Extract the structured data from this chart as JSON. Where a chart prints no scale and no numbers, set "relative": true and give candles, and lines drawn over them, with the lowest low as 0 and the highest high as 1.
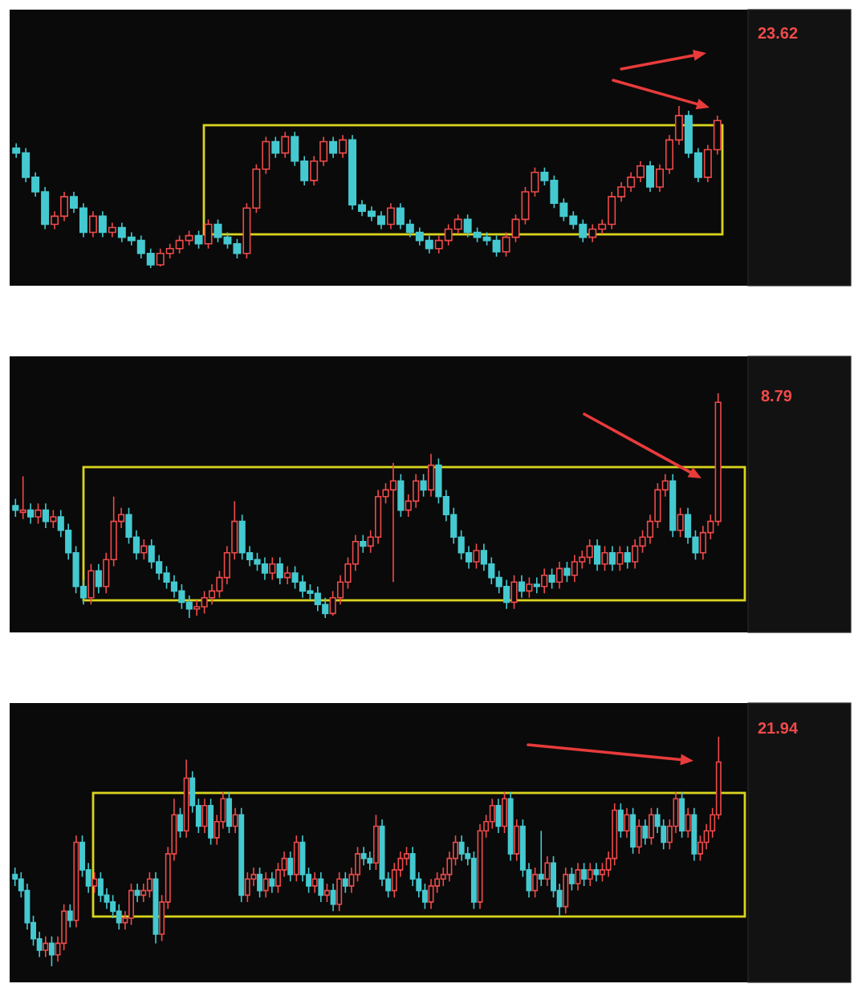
{
  "chart_data": [
    {
      "type": "candlestick",
      "relative": true,
      "categories": [
        null,
        null,
        null,
        null,
        null,
        null,
        null,
        null,
        null,
        null,
        null,
        null,
        null,
        null,
        null,
        null,
        null,
        null,
        null,
        null,
        null,
        null,
        null,
        null,
        null,
        null,
        null,
        null,
        null,
        null,
        null,
        null,
        null,
        null,
        null,
        null,
        null,
        null,
        null,
        null,
        null,
        null,
        null,
        null,
        null,
        null,
        null,
        null,
        null,
        null,
        null,
        null,
        null,
        null,
        null,
        null,
        null,
        null,
        null,
        null,
        null,
        null,
        null,
        null,
        null,
        null,
        null,
        null,
        null,
        null,
        null,
        null,
        null,
        null
      ],
      "ohlc": [
        [
          0.74,
          0.77,
          0.68,
          0.71
        ],
        [
          0.71,
          0.74,
          0.53,
          0.56
        ],
        [
          0.56,
          0.59,
          0.44,
          0.47
        ],
        [
          0.47,
          0.5,
          0.24,
          0.27
        ],
        [
          0.27,
          0.35,
          0.24,
          0.32
        ],
        [
          0.32,
          0.47,
          0.29,
          0.44
        ],
        [
          0.44,
          0.47,
          0.34,
          0.37
        ],
        [
          0.37,
          0.4,
          0.19,
          0.22
        ],
        [
          0.22,
          0.35,
          0.19,
          0.32
        ],
        [
          0.32,
          0.35,
          0.19,
          0.22
        ],
        [
          0.22,
          0.28,
          0.19,
          0.25
        ],
        [
          0.25,
          0.28,
          0.16,
          0.19
        ],
        [
          0.19,
          0.22,
          0.14,
          0.17
        ],
        [
          0.17,
          0.2,
          0.06,
          0.09
        ],
        [
          0.09,
          0.12,
          0,
          0.02
        ],
        [
          0.02,
          0.12,
          0.01,
          0.09
        ],
        [
          0.09,
          0.15,
          0.06,
          0.12
        ],
        [
          0.12,
          0.2,
          0.09,
          0.17
        ],
        [
          0.17,
          0.23,
          0.14,
          0.2
        ],
        [
          0.2,
          0.23,
          0.12,
          0.15
        ],
        [
          0.15,
          0.3,
          0.12,
          0.27
        ],
        [
          0.27,
          0.3,
          0.16,
          0.19
        ],
        [
          0.19,
          0.22,
          0.12,
          0.15
        ],
        [
          0.15,
          0.18,
          0.06,
          0.09
        ],
        [
          0.09,
          0.4,
          0.06,
          0.37
        ],
        [
          0.37,
          0.64,
          0.34,
          0.61
        ],
        [
          0.61,
          0.81,
          0.58,
          0.78
        ],
        [
          0.78,
          0.81,
          0.68,
          0.71
        ],
        [
          0.71,
          0.84,
          0.68,
          0.81
        ],
        [
          0.81,
          0.84,
          0.63,
          0.66
        ],
        [
          0.66,
          0.69,
          0.51,
          0.54
        ],
        [
          0.54,
          0.69,
          0.51,
          0.66
        ],
        [
          0.66,
          0.81,
          0.63,
          0.78
        ],
        [
          0.78,
          0.81,
          0.68,
          0.71
        ],
        [
          0.71,
          0.82,
          0.68,
          0.79
        ],
        [
          0.79,
          0.82,
          0.36,
          0.39
        ],
        [
          0.39,
          0.42,
          0.32,
          0.35
        ],
        [
          0.35,
          0.38,
          0.29,
          0.32
        ],
        [
          0.32,
          0.35,
          0.24,
          0.27
        ],
        [
          0.27,
          0.4,
          0.24,
          0.37
        ],
        [
          0.37,
          0.4,
          0.24,
          0.27
        ],
        [
          0.27,
          0.3,
          0.19,
          0.22
        ],
        [
          0.22,
          0.25,
          0.14,
          0.17
        ],
        [
          0.17,
          0.2,
          0.09,
          0.12
        ],
        [
          0.12,
          0.2,
          0.09,
          0.17
        ],
        [
          0.17,
          0.27,
          0.14,
          0.24
        ],
        [
          0.24,
          0.33,
          0.21,
          0.3
        ],
        [
          0.3,
          0.33,
          0.19,
          0.22
        ],
        [
          0.22,
          0.25,
          0.16,
          0.19
        ],
        [
          0.19,
          0.22,
          0.14,
          0.17
        ],
        [
          0.17,
          0.2,
          0.07,
          0.1
        ],
        [
          0.1,
          0.22,
          0.07,
          0.19
        ],
        [
          0.19,
          0.33,
          0.16,
          0.3
        ],
        [
          0.3,
          0.5,
          0.27,
          0.47
        ],
        [
          0.47,
          0.62,
          0.44,
          0.59
        ],
        [
          0.59,
          0.62,
          0.51,
          0.54
        ],
        [
          0.54,
          0.57,
          0.37,
          0.4
        ],
        [
          0.4,
          0.43,
          0.29,
          0.32
        ],
        [
          0.32,
          0.35,
          0.24,
          0.27
        ],
        [
          0.27,
          0.3,
          0.16,
          0.19
        ],
        [
          0.19,
          0.27,
          0.16,
          0.24
        ],
        [
          0.24,
          0.3,
          0.21,
          0.27
        ],
        [
          0.27,
          0.47,
          0.24,
          0.44
        ],
        [
          0.44,
          0.53,
          0.41,
          0.5
        ],
        [
          0.5,
          0.59,
          0.47,
          0.56
        ],
        [
          0.56,
          0.66,
          0.53,
          0.63
        ],
        [
          0.63,
          0.66,
          0.47,
          0.5
        ],
        [
          0.5,
          0.64,
          0.47,
          0.61
        ],
        [
          0.61,
          0.82,
          0.58,
          0.79
        ],
        [
          0.79,
          1,
          0.76,
          0.94
        ],
        [
          0.94,
          0.97,
          0.68,
          0.71
        ],
        [
          0.71,
          0.74,
          0.53,
          0.56
        ],
        [
          0.56,
          0.76,
          0.53,
          0.73
        ],
        [
          0.73,
          0.94,
          0.7,
          0.91
        ]
      ],
      "colors": [
        "#45c9d0",
        "#45c9d0",
        "#45c9d0",
        "#45c9d0",
        "#f04a4a",
        "#f04a4a",
        "#45c9d0",
        "#45c9d0",
        "#f04a4a",
        "#45c9d0",
        "#f04a4a",
        "#45c9d0",
        "#45c9d0",
        "#45c9d0",
        "#45c9d0",
        "#f04a4a",
        "#f04a4a",
        "#f04a4a",
        "#f04a4a",
        "#45c9d0",
        "#f04a4a",
        "#45c9d0",
        "#45c9d0",
        "#45c9d0",
        "#f04a4a",
        "#f04a4a",
        "#f04a4a",
        "#45c9d0",
        "#f04a4a",
        "#45c9d0",
        "#45c9d0",
        "#f04a4a",
        "#f04a4a",
        "#45c9d0",
        "#f04a4a",
        "#45c9d0",
        "#45c9d0",
        "#45c9d0",
        "#45c9d0",
        "#f04a4a",
        "#45c9d0",
        "#45c9d0",
        "#45c9d0",
        "#45c9d0",
        "#f04a4a",
        "#f04a4a",
        "#f04a4a",
        "#45c9d0",
        "#45c9d0",
        "#45c9d0",
        "#45c9d0",
        "#f04a4a",
        "#f04a4a",
        "#f04a4a",
        "#f04a4a",
        "#45c9d0",
        "#45c9d0",
        "#45c9d0",
        "#45c9d0",
        "#45c9d0",
        "#f04a4a",
        "#f04a4a",
        "#f04a4a",
        "#f04a4a",
        "#f04a4a",
        "#f04a4a",
        "#45c9d0",
        "#f04a4a",
        "#f04a4a",
        "#f04a4a",
        "#45c9d0",
        "#45c9d0",
        "#f04a4a",
        "#f04a4a"
      ],
      "annotations": [
        "23.62"
      ]
    },
    {
      "type": "candlestick",
      "relative": true,
      "categories": [
        null,
        null,
        null,
        null,
        null,
        null,
        null,
        null,
        null,
        null,
        null,
        null,
        null,
        null,
        null,
        null,
        null,
        null,
        null,
        null,
        null,
        null,
        null,
        null,
        null,
        null,
        null,
        null,
        null,
        null,
        null,
        null,
        null,
        null,
        null,
        null,
        null,
        null,
        null,
        null,
        null,
        null,
        null,
        null,
        null,
        null,
        null,
        null,
        null,
        null,
        null,
        null,
        null,
        null,
        null,
        null,
        null,
        null,
        null,
        null,
        null,
        null,
        null,
        null,
        null,
        null,
        null,
        null,
        null,
        null,
        null,
        null,
        null,
        null,
        null,
        null,
        null,
        null,
        null,
        null,
        null,
        null,
        null,
        null,
        null,
        null,
        null,
        null,
        null,
        null,
        null,
        null,
        null,
        null
      ],
      "ohlc": [
        [
          0.5,
          0.53,
          0.45,
          0.48
        ],
        [
          0.47,
          0.63,
          0.44,
          0.48
        ],
        [
          0.48,
          0.51,
          0.42,
          0.45
        ],
        [
          0.45,
          0.51,
          0.42,
          0.48
        ],
        [
          0.48,
          0.51,
          0.4,
          0.43
        ],
        [
          0.43,
          0.48,
          0.4,
          0.45
        ],
        [
          0.45,
          0.48,
          0.36,
          0.39
        ],
        [
          0.39,
          0.42,
          0.26,
          0.29
        ],
        [
          0.29,
          0.32,
          0.11,
          0.14
        ],
        [
          0.14,
          0.17,
          0.06,
          0.09
        ],
        [
          0.09,
          0.24,
          0.06,
          0.21
        ],
        [
          0.21,
          0.24,
          0.11,
          0.14
        ],
        [
          0.14,
          0.29,
          0.11,
          0.26
        ],
        [
          0.26,
          0.54,
          0.23,
          0.43
        ],
        [
          0.43,
          0.49,
          0.4,
          0.46
        ],
        [
          0.46,
          0.49,
          0.33,
          0.36
        ],
        [
          0.36,
          0.39,
          0.26,
          0.29
        ],
        [
          0.29,
          0.35,
          0.26,
          0.32
        ],
        [
          0.32,
          0.35,
          0.22,
          0.25
        ],
        [
          0.25,
          0.28,
          0.17,
          0.2
        ],
        [
          0.2,
          0.23,
          0.13,
          0.16
        ],
        [
          0.16,
          0.19,
          0.09,
          0.12
        ],
        [
          0.12,
          0.15,
          0.04,
          0.07
        ],
        [
          0.07,
          0.1,
          0,
          0.04
        ],
        [
          0.04,
          0.08,
          0.01,
          0.05
        ],
        [
          0.05,
          0.12,
          0.02,
          0.09
        ],
        [
          0.09,
          0.15,
          0.06,
          0.12
        ],
        [
          0.12,
          0.21,
          0.09,
          0.18
        ],
        [
          0.18,
          0.32,
          0.15,
          0.29
        ],
        [
          0.29,
          0.52,
          0.26,
          0.43
        ],
        [
          0.43,
          0.46,
          0.26,
          0.29
        ],
        [
          0.29,
          0.32,
          0.23,
          0.26
        ],
        [
          0.26,
          0.29,
          0.21,
          0.24
        ],
        [
          0.24,
          0.27,
          0.17,
          0.2
        ],
        [
          0.2,
          0.27,
          0.17,
          0.24
        ],
        [
          0.24,
          0.27,
          0.15,
          0.18
        ],
        [
          0.18,
          0.23,
          0.15,
          0.2
        ],
        [
          0.2,
          0.23,
          0.13,
          0.16
        ],
        [
          0.16,
          0.19,
          0.09,
          0.12
        ],
        [
          0.12,
          0.15,
          0.08,
          0.11
        ],
        [
          0.11,
          0.14,
          0.03,
          0.06
        ],
        [
          0.06,
          0.09,
          0,
          0.02
        ],
        [
          0.02,
          0.12,
          0.01,
          0.09
        ],
        [
          0.09,
          0.19,
          0.06,
          0.16
        ],
        [
          0.16,
          0.27,
          0.13,
          0.24
        ],
        [
          0.24,
          0.37,
          0.21,
          0.34
        ],
        [
          0.34,
          0.37,
          0.29,
          0.32
        ],
        [
          0.32,
          0.39,
          0.29,
          0.36
        ],
        [
          0.36,
          0.57,
          0.33,
          0.54
        ],
        [
          0.54,
          0.6,
          0.51,
          0.57
        ],
        [
          0.57,
          0.69,
          0.16,
          0.61
        ],
        [
          0.61,
          0.64,
          0.45,
          0.48
        ],
        [
          0.48,
          0.55,
          0.45,
          0.52
        ],
        [
          0.52,
          0.64,
          0.49,
          0.61
        ],
        [
          0.61,
          0.64,
          0.54,
          0.57
        ],
        [
          0.57,
          0.73,
          0.54,
          0.68
        ],
        [
          0.68,
          0.71,
          0.51,
          0.54
        ],
        [
          0.54,
          0.57,
          0.43,
          0.46
        ],
        [
          0.46,
          0.49,
          0.33,
          0.36
        ],
        [
          0.36,
          0.39,
          0.26,
          0.29
        ],
        [
          0.29,
          0.32,
          0.22,
          0.25
        ],
        [
          0.25,
          0.33,
          0.22,
          0.3
        ],
        [
          0.3,
          0.33,
          0.21,
          0.24
        ],
        [
          0.24,
          0.27,
          0.15,
          0.18
        ],
        [
          0.18,
          0.21,
          0.11,
          0.14
        ],
        [
          0.14,
          0.17,
          0.04,
          0.07
        ],
        [
          0.07,
          0.19,
          0.04,
          0.16
        ],
        [
          0.16,
          0.19,
          0.09,
          0.12
        ],
        [
          0.12,
          0.18,
          0.09,
          0.15
        ],
        [
          0.15,
          0.18,
          0.11,
          0.14
        ],
        [
          0.14,
          0.22,
          0.11,
          0.19
        ],
        [
          0.19,
          0.22,
          0.13,
          0.16
        ],
        [
          0.16,
          0.25,
          0.13,
          0.22
        ],
        [
          0.22,
          0.25,
          0.16,
          0.19
        ],
        [
          0.19,
          0.28,
          0.16,
          0.25
        ],
        [
          0.25,
          0.3,
          0.22,
          0.27
        ],
        [
          0.27,
          0.35,
          0.24,
          0.32
        ],
        [
          0.32,
          0.35,
          0.21,
          0.24
        ],
        [
          0.24,
          0.32,
          0.21,
          0.29
        ],
        [
          0.29,
          0.32,
          0.21,
          0.24
        ],
        [
          0.24,
          0.32,
          0.21,
          0.29
        ],
        [
          0.29,
          0.32,
          0.22,
          0.25
        ],
        [
          0.25,
          0.35,
          0.22,
          0.32
        ],
        [
          0.32,
          0.39,
          0.29,
          0.36
        ],
        [
          0.36,
          0.46,
          0.33,
          0.43
        ],
        [
          0.43,
          0.6,
          0.4,
          0.57
        ],
        [
          0.57,
          0.64,
          0.54,
          0.61
        ],
        [
          0.61,
          0.64,
          0.36,
          0.39
        ],
        [
          0.39,
          0.49,
          0.36,
          0.46
        ],
        [
          0.46,
          0.49,
          0.33,
          0.36
        ],
        [
          0.36,
          0.39,
          0.26,
          0.29
        ],
        [
          0.29,
          0.41,
          0.26,
          0.38
        ],
        [
          0.38,
          0.46,
          0.35,
          0.43
        ],
        [
          0.43,
          1,
          0.41,
          0.96
        ]
      ],
      "colors": [
        "#45c9d0",
        "#f04a4a",
        "#45c9d0",
        "#f04a4a",
        "#45c9d0",
        "#f04a4a",
        "#45c9d0",
        "#45c9d0",
        "#45c9d0",
        "#45c9d0",
        "#f04a4a",
        "#45c9d0",
        "#f04a4a",
        "#f04a4a",
        "#f04a4a",
        "#45c9d0",
        "#45c9d0",
        "#f04a4a",
        "#45c9d0",
        "#45c9d0",
        "#45c9d0",
        "#45c9d0",
        "#45c9d0",
        "#45c9d0",
        "#f04a4a",
        "#f04a4a",
        "#f04a4a",
        "#f04a4a",
        "#f04a4a",
        "#f04a4a",
        "#45c9d0",
        "#45c9d0",
        "#45c9d0",
        "#45c9d0",
        "#f04a4a",
        "#45c9d0",
        "#f04a4a",
        "#45c9d0",
        "#45c9d0",
        "#45c9d0",
        "#45c9d0",
        "#45c9d0",
        "#f04a4a",
        "#f04a4a",
        "#f04a4a",
        "#f04a4a",
        "#45c9d0",
        "#f04a4a",
        "#f04a4a",
        "#f04a4a",
        "#f04a4a",
        "#45c9d0",
        "#f04a4a",
        "#f04a4a",
        "#45c9d0",
        "#f04a4a",
        "#45c9d0",
        "#45c9d0",
        "#45c9d0",
        "#45c9d0",
        "#45c9d0",
        "#f04a4a",
        "#45c9d0",
        "#45c9d0",
        "#45c9d0",
        "#45c9d0",
        "#f04a4a",
        "#45c9d0",
        "#f04a4a",
        "#45c9d0",
        "#f04a4a",
        "#45c9d0",
        "#f04a4a",
        "#45c9d0",
        "#f04a4a",
        "#f04a4a",
        "#f04a4a",
        "#45c9d0",
        "#f04a4a",
        "#45c9d0",
        "#f04a4a",
        "#45c9d0",
        "#f04a4a",
        "#f04a4a",
        "#f04a4a",
        "#f04a4a",
        "#f04a4a",
        "#45c9d0",
        "#f04a4a",
        "#45c9d0",
        "#45c9d0",
        "#f04a4a",
        "#f04a4a",
        "#f04a4a"
      ],
      "annotations": [
        "8.79"
      ]
    },
    {
      "type": "candlestick",
      "relative": true,
      "categories": [
        null,
        null,
        null,
        null,
        null,
        null,
        null,
        null,
        null,
        null,
        null,
        null,
        null,
        null,
        null,
        null,
        null,
        null,
        null,
        null,
        null,
        null,
        null,
        null,
        null,
        null,
        null,
        null,
        null,
        null,
        null,
        null,
        null,
        null,
        null,
        null,
        null,
        null,
        null,
        null,
        null,
        null,
        null,
        null,
        null,
        null,
        null,
        null,
        null,
        null,
        null,
        null,
        null,
        null,
        null,
        null,
        null,
        null,
        null,
        null,
        null,
        null,
        null,
        null,
        null,
        null,
        null,
        null,
        null,
        null,
        null,
        null,
        null,
        null,
        null,
        null,
        null,
        null,
        null,
        null,
        null,
        null,
        null,
        null,
        null,
        null,
        null,
        null,
        null,
        null,
        null,
        null,
        null,
        null,
        null,
        null,
        null,
        null,
        null,
        null,
        null,
        null,
        null,
        null,
        null,
        null,
        null,
        null,
        null,
        null,
        null,
        null,
        null,
        null,
        null,
        null
      ],
      "ohlc": [
        [
          0.4,
          0.43,
          0.35,
          0.38
        ],
        [
          0.38,
          0.41,
          0.3,
          0.33
        ],
        [
          0.33,
          0.36,
          0.16,
          0.19
        ],
        [
          0.19,
          0.22,
          0.09,
          0.12
        ],
        [
          0.12,
          0.15,
          0.04,
          0.07
        ],
        [
          0.07,
          0.13,
          0.04,
          0.1
        ],
        [
          0.1,
          0.13,
          0,
          0.05
        ],
        [
          0.05,
          0.13,
          0.02,
          0.1
        ],
        [
          0.1,
          0.27,
          0.07,
          0.24
        ],
        [
          0.24,
          0.27,
          0.17,
          0.2
        ],
        [
          0.2,
          0.57,
          0.17,
          0.54
        ],
        [
          0.54,
          0.57,
          0.39,
          0.42
        ],
        [
          0.42,
          0.45,
          0.32,
          0.35
        ],
        [
          0.35,
          0.41,
          0.32,
          0.38
        ],
        [
          0.38,
          0.41,
          0.28,
          0.31
        ],
        [
          0.31,
          0.34,
          0.25,
          0.28
        ],
        [
          0.28,
          0.31,
          0.21,
          0.24
        ],
        [
          0.24,
          0.27,
          0.16,
          0.19
        ],
        [
          0.19,
          0.24,
          0.16,
          0.21
        ],
        [
          0.21,
          0.36,
          0.18,
          0.33
        ],
        [
          0.33,
          0.36,
          0.28,
          0.31
        ],
        [
          0.31,
          0.36,
          0.28,
          0.33
        ],
        [
          0.33,
          0.41,
          0.3,
          0.38
        ],
        [
          0.38,
          0.41,
          0.1,
          0.14
        ],
        [
          0.14,
          0.31,
          0.11,
          0.28
        ],
        [
          0.28,
          0.52,
          0.25,
          0.49
        ],
        [
          0.49,
          0.73,
          0.46,
          0.66
        ],
        [
          0.66,
          0.69,
          0.56,
          0.59
        ],
        [
          0.59,
          0.9,
          0.56,
          0.82
        ],
        [
          0.82,
          0.85,
          0.67,
          0.7
        ],
        [
          0.7,
          0.73,
          0.58,
          0.61
        ],
        [
          0.61,
          0.73,
          0.58,
          0.7
        ],
        [
          0.7,
          0.73,
          0.53,
          0.56
        ],
        [
          0.56,
          0.66,
          0.53,
          0.63
        ],
        [
          0.63,
          0.76,
          0.6,
          0.73
        ],
        [
          0.73,
          0.76,
          0.58,
          0.61
        ],
        [
          0.61,
          0.69,
          0.58,
          0.66
        ],
        [
          0.66,
          0.69,
          0.28,
          0.31
        ],
        [
          0.31,
          0.41,
          0.28,
          0.38
        ],
        [
          0.38,
          0.43,
          0.35,
          0.4
        ],
        [
          0.4,
          0.43,
          0.3,
          0.33
        ],
        [
          0.33,
          0.41,
          0.3,
          0.38
        ],
        [
          0.38,
          0.41,
          0.32,
          0.35
        ],
        [
          0.35,
          0.45,
          0.32,
          0.42
        ],
        [
          0.42,
          0.5,
          0.39,
          0.47
        ],
        [
          0.47,
          0.5,
          0.37,
          0.4
        ],
        [
          0.4,
          0.57,
          0.37,
          0.54
        ],
        [
          0.54,
          0.57,
          0.37,
          0.4
        ],
        [
          0.4,
          0.43,
          0.32,
          0.35
        ],
        [
          0.35,
          0.41,
          0.32,
          0.38
        ],
        [
          0.38,
          0.41,
          0.28,
          0.31
        ],
        [
          0.31,
          0.36,
          0.28,
          0.33
        ],
        [
          0.33,
          0.36,
          0.24,
          0.27
        ],
        [
          0.27,
          0.41,
          0.24,
          0.38
        ],
        [
          0.38,
          0.41,
          0.32,
          0.35
        ],
        [
          0.35,
          0.43,
          0.32,
          0.4
        ],
        [
          0.4,
          0.52,
          0.37,
          0.49
        ],
        [
          0.49,
          0.52,
          0.44,
          0.47
        ],
        [
          0.47,
          0.5,
          0.42,
          0.45
        ],
        [
          0.45,
          0.66,
          0.42,
          0.61
        ],
        [
          0.61,
          0.64,
          0.35,
          0.38
        ],
        [
          0.38,
          0.41,
          0.3,
          0.33
        ],
        [
          0.33,
          0.45,
          0.3,
          0.42
        ],
        [
          0.42,
          0.5,
          0.39,
          0.47
        ],
        [
          0.47,
          0.52,
          0.44,
          0.49
        ],
        [
          0.49,
          0.52,
          0.35,
          0.38
        ],
        [
          0.38,
          0.41,
          0.3,
          0.33
        ],
        [
          0.33,
          0.36,
          0.25,
          0.28
        ],
        [
          0.28,
          0.38,
          0.25,
          0.35
        ],
        [
          0.35,
          0.41,
          0.32,
          0.38
        ],
        [
          0.38,
          0.43,
          0.35,
          0.4
        ],
        [
          0.4,
          0.5,
          0.37,
          0.47
        ],
        [
          0.47,
          0.57,
          0.44,
          0.54
        ],
        [
          0.54,
          0.57,
          0.46,
          0.49
        ],
        [
          0.49,
          0.52,
          0.44,
          0.47
        ],
        [
          0.47,
          0.5,
          0.25,
          0.28
        ],
        [
          0.28,
          0.62,
          0.25,
          0.59
        ],
        [
          0.59,
          0.66,
          0.56,
          0.63
        ],
        [
          0.63,
          0.73,
          0.6,
          0.7
        ],
        [
          0.7,
          0.73,
          0.58,
          0.61
        ],
        [
          0.61,
          0.76,
          0.58,
          0.73
        ],
        [
          0.73,
          0.76,
          0.46,
          0.49
        ],
        [
          0.49,
          0.64,
          0.46,
          0.61
        ],
        [
          0.61,
          0.64,
          0.39,
          0.42
        ],
        [
          0.42,
          0.45,
          0.3,
          0.33
        ],
        [
          0.33,
          0.43,
          0.3,
          0.4
        ],
        [
          0.4,
          0.59,
          0.35,
          0.38
        ],
        [
          0.38,
          0.48,
          0.35,
          0.45
        ],
        [
          0.45,
          0.48,
          0.3,
          0.33
        ],
        [
          0.33,
          0.36,
          0.22,
          0.26
        ],
        [
          0.26,
          0.43,
          0.23,
          0.4
        ],
        [
          0.4,
          0.43,
          0.33,
          0.36
        ],
        [
          0.36,
          0.45,
          0.33,
          0.42
        ],
        [
          0.42,
          0.45,
          0.35,
          0.38
        ],
        [
          0.38,
          0.45,
          0.35,
          0.42
        ],
        [
          0.42,
          0.45,
          0.37,
          0.4
        ],
        [
          0.4,
          0.45,
          0.37,
          0.42
        ],
        [
          0.42,
          0.5,
          0.39,
          0.47
        ],
        [
          0.47,
          0.71,
          0.44,
          0.68
        ],
        [
          0.68,
          0.71,
          0.56,
          0.59
        ],
        [
          0.59,
          0.69,
          0.56,
          0.66
        ],
        [
          0.66,
          0.69,
          0.49,
          0.52
        ],
        [
          0.52,
          0.64,
          0.49,
          0.61
        ],
        [
          0.61,
          0.64,
          0.53,
          0.56
        ],
        [
          0.56,
          0.69,
          0.53,
          0.66
        ],
        [
          0.66,
          0.69,
          0.58,
          0.61
        ],
        [
          0.61,
          0.64,
          0.51,
          0.54
        ],
        [
          0.54,
          0.64,
          0.51,
          0.61
        ],
        [
          0.61,
          0.76,
          0.58,
          0.73
        ],
        [
          0.73,
          0.76,
          0.56,
          0.59
        ],
        [
          0.59,
          0.69,
          0.56,
          0.66
        ],
        [
          0.66,
          0.69,
          0.46,
          0.49
        ],
        [
          0.49,
          0.57,
          0.46,
          0.54
        ],
        [
          0.54,
          0.62,
          0.51,
          0.59
        ],
        [
          0.59,
          0.69,
          0.56,
          0.66
        ],
        [
          0.66,
          1,
          0.64,
          0.89
        ]
      ],
      "colors": [
        "#45c9d0",
        "#45c9d0",
        "#45c9d0",
        "#45c9d0",
        "#45c9d0",
        "#f04a4a",
        "#45c9d0",
        "#f04a4a",
        "#f04a4a",
        "#45c9d0",
        "#f04a4a",
        "#45c9d0",
        "#45c9d0",
        "#f04a4a",
        "#45c9d0",
        "#45c9d0",
        "#45c9d0",
        "#45c9d0",
        "#f04a4a",
        "#f04a4a",
        "#45c9d0",
        "#f04a4a",
        "#f04a4a",
        "#45c9d0",
        "#f04a4a",
        "#f04a4a",
        "#f04a4a",
        "#45c9d0",
        "#f04a4a",
        "#45c9d0",
        "#45c9d0",
        "#f04a4a",
        "#45c9d0",
        "#f04a4a",
        "#f04a4a",
        "#45c9d0",
        "#f04a4a",
        "#45c9d0",
        "#f04a4a",
        "#f04a4a",
        "#45c9d0",
        "#f04a4a",
        "#45c9d0",
        "#f04a4a",
        "#f04a4a",
        "#45c9d0",
        "#f04a4a",
        "#45c9d0",
        "#45c9d0",
        "#f04a4a",
        "#45c9d0",
        "#f04a4a",
        "#45c9d0",
        "#f04a4a",
        "#45c9d0",
        "#f04a4a",
        "#f04a4a",
        "#45c9d0",
        "#45c9d0",
        "#f04a4a",
        "#45c9d0",
        "#45c9d0",
        "#f04a4a",
        "#f04a4a",
        "#f04a4a",
        "#45c9d0",
        "#45c9d0",
        "#45c9d0",
        "#f04a4a",
        "#f04a4a",
        "#f04a4a",
        "#f04a4a",
        "#f04a4a",
        "#45c9d0",
        "#45c9d0",
        "#45c9d0",
        "#f04a4a",
        "#f04a4a",
        "#f04a4a",
        "#45c9d0",
        "#f04a4a",
        "#45c9d0",
        "#f04a4a",
        "#45c9d0",
        "#45c9d0",
        "#f04a4a",
        "#45c9d0",
        "#f04a4a",
        "#45c9d0",
        "#45c9d0",
        "#f04a4a",
        "#45c9d0",
        "#f04a4a",
        "#45c9d0",
        "#f04a4a",
        "#45c9d0",
        "#f04a4a",
        "#f04a4a",
        "#f04a4a",
        "#45c9d0",
        "#f04a4a",
        "#45c9d0",
        "#f04a4a",
        "#45c9d0",
        "#f04a4a",
        "#45c9d0",
        "#45c9d0",
        "#f04a4a",
        "#f04a4a",
        "#45c9d0",
        "#f04a4a",
        "#45c9d0",
        "#f04a4a",
        "#f04a4a",
        "#f04a4a",
        "#f04a4a"
      ],
      "annotations": [
        "21.94"
      ]
    }
  ]
}
